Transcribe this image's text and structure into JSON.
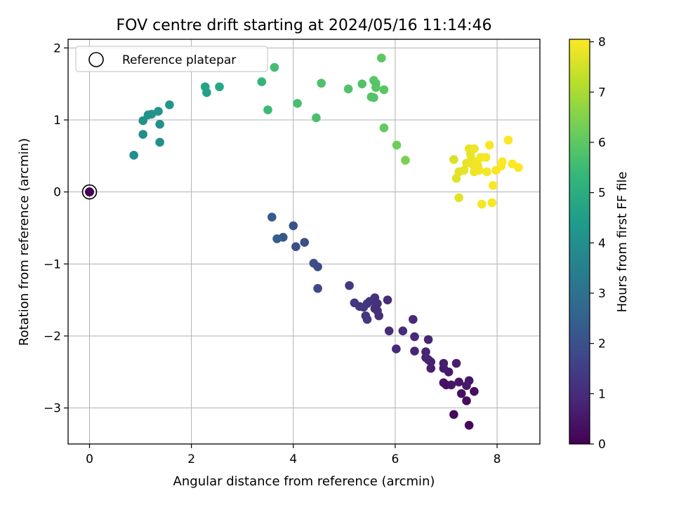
{
  "chart_data": {
    "type": "scatter",
    "title": "FOV centre drift starting at 2024/05/16 11:14:46",
    "xlabel": "Angular distance from reference (arcmin)",
    "ylabel": "Rotation from reference (arcmin)",
    "xlim": [
      -0.42,
      8.84
    ],
    "ylim": [
      -3.5,
      2.12
    ],
    "xticks": [
      0,
      2,
      4,
      6,
      8
    ],
    "yticks": [
      -3,
      -2,
      -1,
      0,
      1,
      2
    ],
    "xtick_labels": [
      "0",
      "2",
      "4",
      "6",
      "8"
    ],
    "ytick_labels": [
      "−3",
      "−2",
      "−1",
      "0",
      "1",
      "2"
    ],
    "grid": true,
    "legend": {
      "placement": "upper-left",
      "label": "Reference platepar"
    },
    "colorbar": {
      "label": "Hours from first FF file",
      "range": [
        0,
        8.05
      ],
      "ticks": [
        0,
        1,
        2,
        3,
        4,
        5,
        6,
        7,
        8
      ],
      "tick_labels": [
        "0",
        "1",
        "2",
        "3",
        "4",
        "5",
        "6",
        "7",
        "8"
      ],
      "colormap": [
        "#440154",
        "#482878",
        "#3e4989",
        "#31688e",
        "#26828e",
        "#1f9e89",
        "#35b779",
        "#6ece58",
        "#b5de2b",
        "#fde725"
      ]
    },
    "reference_point": {
      "x": 0,
      "y": 0,
      "hours": 0
    },
    "points": [
      {
        "x": 7.45,
        "y": -3.24,
        "hours": 0.15
      },
      {
        "x": 7.15,
        "y": -3.09,
        "hours": 0.2
      },
      {
        "x": 7.4,
        "y": -2.9,
        "hours": 0.25
      },
      {
        "x": 7.55,
        "y": -2.77,
        "hours": 0.3
      },
      {
        "x": 7.3,
        "y": -2.8,
        "hours": 0.35
      },
      {
        "x": 7.0,
        "y": -2.68,
        "hours": 0.4
      },
      {
        "x": 6.95,
        "y": -2.65,
        "hours": 0.4
      },
      {
        "x": 7.1,
        "y": -2.68,
        "hours": 0.45
      },
      {
        "x": 7.25,
        "y": -2.64,
        "hours": 0.5
      },
      {
        "x": 7.45,
        "y": -2.62,
        "hours": 0.5
      },
      {
        "x": 7.4,
        "y": -2.69,
        "hours": 0.55
      },
      {
        "x": 7.05,
        "y": -2.5,
        "hours": 0.6
      },
      {
        "x": 6.95,
        "y": -2.45,
        "hours": 0.6
      },
      {
        "x": 6.95,
        "y": -2.38,
        "hours": 0.65
      },
      {
        "x": 7.2,
        "y": -2.38,
        "hours": 0.65
      },
      {
        "x": 6.7,
        "y": -2.45,
        "hours": 0.7
      },
      {
        "x": 6.65,
        "y": -2.33,
        "hours": 0.75
      },
      {
        "x": 6.7,
        "y": -2.36,
        "hours": 0.75
      },
      {
        "x": 6.6,
        "y": -2.22,
        "hours": 0.8
      },
      {
        "x": 6.6,
        "y": -2.3,
        "hours": 0.8
      },
      {
        "x": 6.65,
        "y": -2.05,
        "hours": 0.85
      },
      {
        "x": 6.38,
        "y": -2.21,
        "hours": 0.85
      },
      {
        "x": 6.38,
        "y": -2.01,
        "hours": 0.9
      },
      {
        "x": 6.35,
        "y": -1.77,
        "hours": 0.9
      },
      {
        "x": 6.15,
        "y": -1.93,
        "hours": 0.95
      },
      {
        "x": 6.02,
        "y": -2.18,
        "hours": 0.95
      },
      {
        "x": 5.88,
        "y": -1.93,
        "hours": 1.0
      },
      {
        "x": 5.85,
        "y": -1.5,
        "hours": 1.0
      },
      {
        "x": 5.68,
        "y": -1.72,
        "hours": 1.05
      },
      {
        "x": 5.65,
        "y": -1.65,
        "hours": 1.05
      },
      {
        "x": 5.6,
        "y": -1.62,
        "hours": 1.1
      },
      {
        "x": 5.58,
        "y": -1.5,
        "hours": 1.1
      },
      {
        "x": 5.6,
        "y": -1.47,
        "hours": 1.15
      },
      {
        "x": 5.65,
        "y": -1.55,
        "hours": 1.15
      },
      {
        "x": 5.5,
        "y": -1.52,
        "hours": 1.2
      },
      {
        "x": 5.45,
        "y": -1.55,
        "hours": 1.2
      },
      {
        "x": 5.38,
        "y": -1.6,
        "hours": 1.25
      },
      {
        "x": 5.3,
        "y": -1.59,
        "hours": 1.25
      },
      {
        "x": 5.2,
        "y": -1.54,
        "hours": 1.3
      },
      {
        "x": 5.42,
        "y": -1.72,
        "hours": 1.3
      },
      {
        "x": 5.45,
        "y": -1.77,
        "hours": 1.35
      },
      {
        "x": 5.1,
        "y": -1.3,
        "hours": 1.35
      },
      {
        "x": 4.48,
        "y": -1.34,
        "hours": 1.8
      },
      {
        "x": 4.48,
        "y": -1.04,
        "hours": 1.85
      },
      {
        "x": 4.4,
        "y": -0.99,
        "hours": 1.9
      },
      {
        "x": 4.22,
        "y": -0.7,
        "hours": 1.95
      },
      {
        "x": 4.05,
        "y": -0.76,
        "hours": 2.0
      },
      {
        "x": 4.0,
        "y": -0.47,
        "hours": 2.05
      },
      {
        "x": 3.8,
        "y": -0.63,
        "hours": 2.2
      },
      {
        "x": 3.68,
        "y": -0.65,
        "hours": 2.4
      },
      {
        "x": 3.58,
        "y": -0.35,
        "hours": 2.3
      },
      {
        "x": 0.87,
        "y": 0.51,
        "hours": 3.9
      },
      {
        "x": 1.38,
        "y": 0.69,
        "hours": 4.0
      },
      {
        "x": 1.05,
        "y": 0.8,
        "hours": 4.0
      },
      {
        "x": 1.38,
        "y": 0.94,
        "hours": 4.05
      },
      {
        "x": 1.05,
        "y": 0.99,
        "hours": 4.05
      },
      {
        "x": 1.15,
        "y": 1.07,
        "hours": 4.1
      },
      {
        "x": 1.22,
        "y": 1.08,
        "hours": 4.1
      },
      {
        "x": 1.35,
        "y": 1.12,
        "hours": 4.15
      },
      {
        "x": 1.57,
        "y": 1.21,
        "hours": 4.2
      },
      {
        "x": 2.3,
        "y": 1.38,
        "hours": 4.6
      },
      {
        "x": 2.27,
        "y": 1.46,
        "hours": 4.7
      },
      {
        "x": 2.55,
        "y": 1.46,
        "hours": 4.8
      },
      {
        "x": 3.38,
        "y": 1.53,
        "hours": 5.3
      },
      {
        "x": 3.5,
        "y": 1.14,
        "hours": 5.5
      },
      {
        "x": 3.63,
        "y": 1.73,
        "hours": 5.6
      },
      {
        "x": 4.08,
        "y": 1.23,
        "hours": 5.65
      },
      {
        "x": 4.45,
        "y": 1.03,
        "hours": 5.7
      },
      {
        "x": 4.55,
        "y": 1.51,
        "hours": 5.75
      },
      {
        "x": 5.08,
        "y": 1.43,
        "hours": 5.8
      },
      {
        "x": 5.35,
        "y": 1.5,
        "hours": 5.8
      },
      {
        "x": 5.53,
        "y": 1.32,
        "hours": 5.85
      },
      {
        "x": 5.58,
        "y": 1.31,
        "hours": 5.85
      },
      {
        "x": 5.58,
        "y": 1.55,
        "hours": 5.9
      },
      {
        "x": 5.62,
        "y": 1.51,
        "hours": 5.9
      },
      {
        "x": 5.62,
        "y": 1.45,
        "hours": 5.9
      },
      {
        "x": 5.78,
        "y": 1.42,
        "hours": 5.95
      },
      {
        "x": 5.73,
        "y": 1.86,
        "hours": 6.0
      },
      {
        "x": 5.78,
        "y": 0.89,
        "hours": 6.05
      },
      {
        "x": 6.03,
        "y": 0.65,
        "hours": 6.25
      },
      {
        "x": 6.2,
        "y": 0.44,
        "hours": 6.4
      },
      {
        "x": 7.15,
        "y": 0.45,
        "hours": 7.6
      },
      {
        "x": 7.2,
        "y": 0.19,
        "hours": 7.65
      },
      {
        "x": 7.25,
        "y": -0.08,
        "hours": 7.7
      },
      {
        "x": 7.25,
        "y": 0.28,
        "hours": 7.7
      },
      {
        "x": 7.35,
        "y": 0.3,
        "hours": 7.75
      },
      {
        "x": 7.4,
        "y": 0.4,
        "hours": 7.75
      },
      {
        "x": 7.45,
        "y": 0.6,
        "hours": 7.8
      },
      {
        "x": 7.48,
        "y": 0.52,
        "hours": 7.8
      },
      {
        "x": 7.5,
        "y": 0.45,
        "hours": 7.8
      },
      {
        "x": 7.52,
        "y": 0.38,
        "hours": 7.85
      },
      {
        "x": 7.55,
        "y": 0.6,
        "hours": 7.85
      },
      {
        "x": 7.55,
        "y": 0.28,
        "hours": 7.85
      },
      {
        "x": 7.58,
        "y": 0.33,
        "hours": 7.9
      },
      {
        "x": 7.6,
        "y": 0.42,
        "hours": 7.9
      },
      {
        "x": 7.62,
        "y": 0.37,
        "hours": 7.9
      },
      {
        "x": 7.65,
        "y": 0.3,
        "hours": 7.9
      },
      {
        "x": 7.68,
        "y": 0.48,
        "hours": 7.95
      },
      {
        "x": 7.7,
        "y": -0.17,
        "hours": 7.95
      },
      {
        "x": 7.78,
        "y": 0.48,
        "hours": 7.95
      },
      {
        "x": 7.8,
        "y": 0.28,
        "hours": 7.95
      },
      {
        "x": 7.85,
        "y": 0.65,
        "hours": 8.0
      },
      {
        "x": 7.9,
        "y": -0.15,
        "hours": 8.0
      },
      {
        "x": 7.92,
        "y": 0.09,
        "hours": 8.0
      },
      {
        "x": 7.98,
        "y": 0.3,
        "hours": 8.0
      },
      {
        "x": 8.08,
        "y": 0.36,
        "hours": 8.0
      },
      {
        "x": 8.1,
        "y": 0.42,
        "hours": 8.05
      },
      {
        "x": 8.22,
        "y": 0.72,
        "hours": 8.05
      },
      {
        "x": 8.3,
        "y": 0.39,
        "hours": 8.05
      },
      {
        "x": 8.42,
        "y": 0.34,
        "hours": 8.05
      }
    ]
  }
}
